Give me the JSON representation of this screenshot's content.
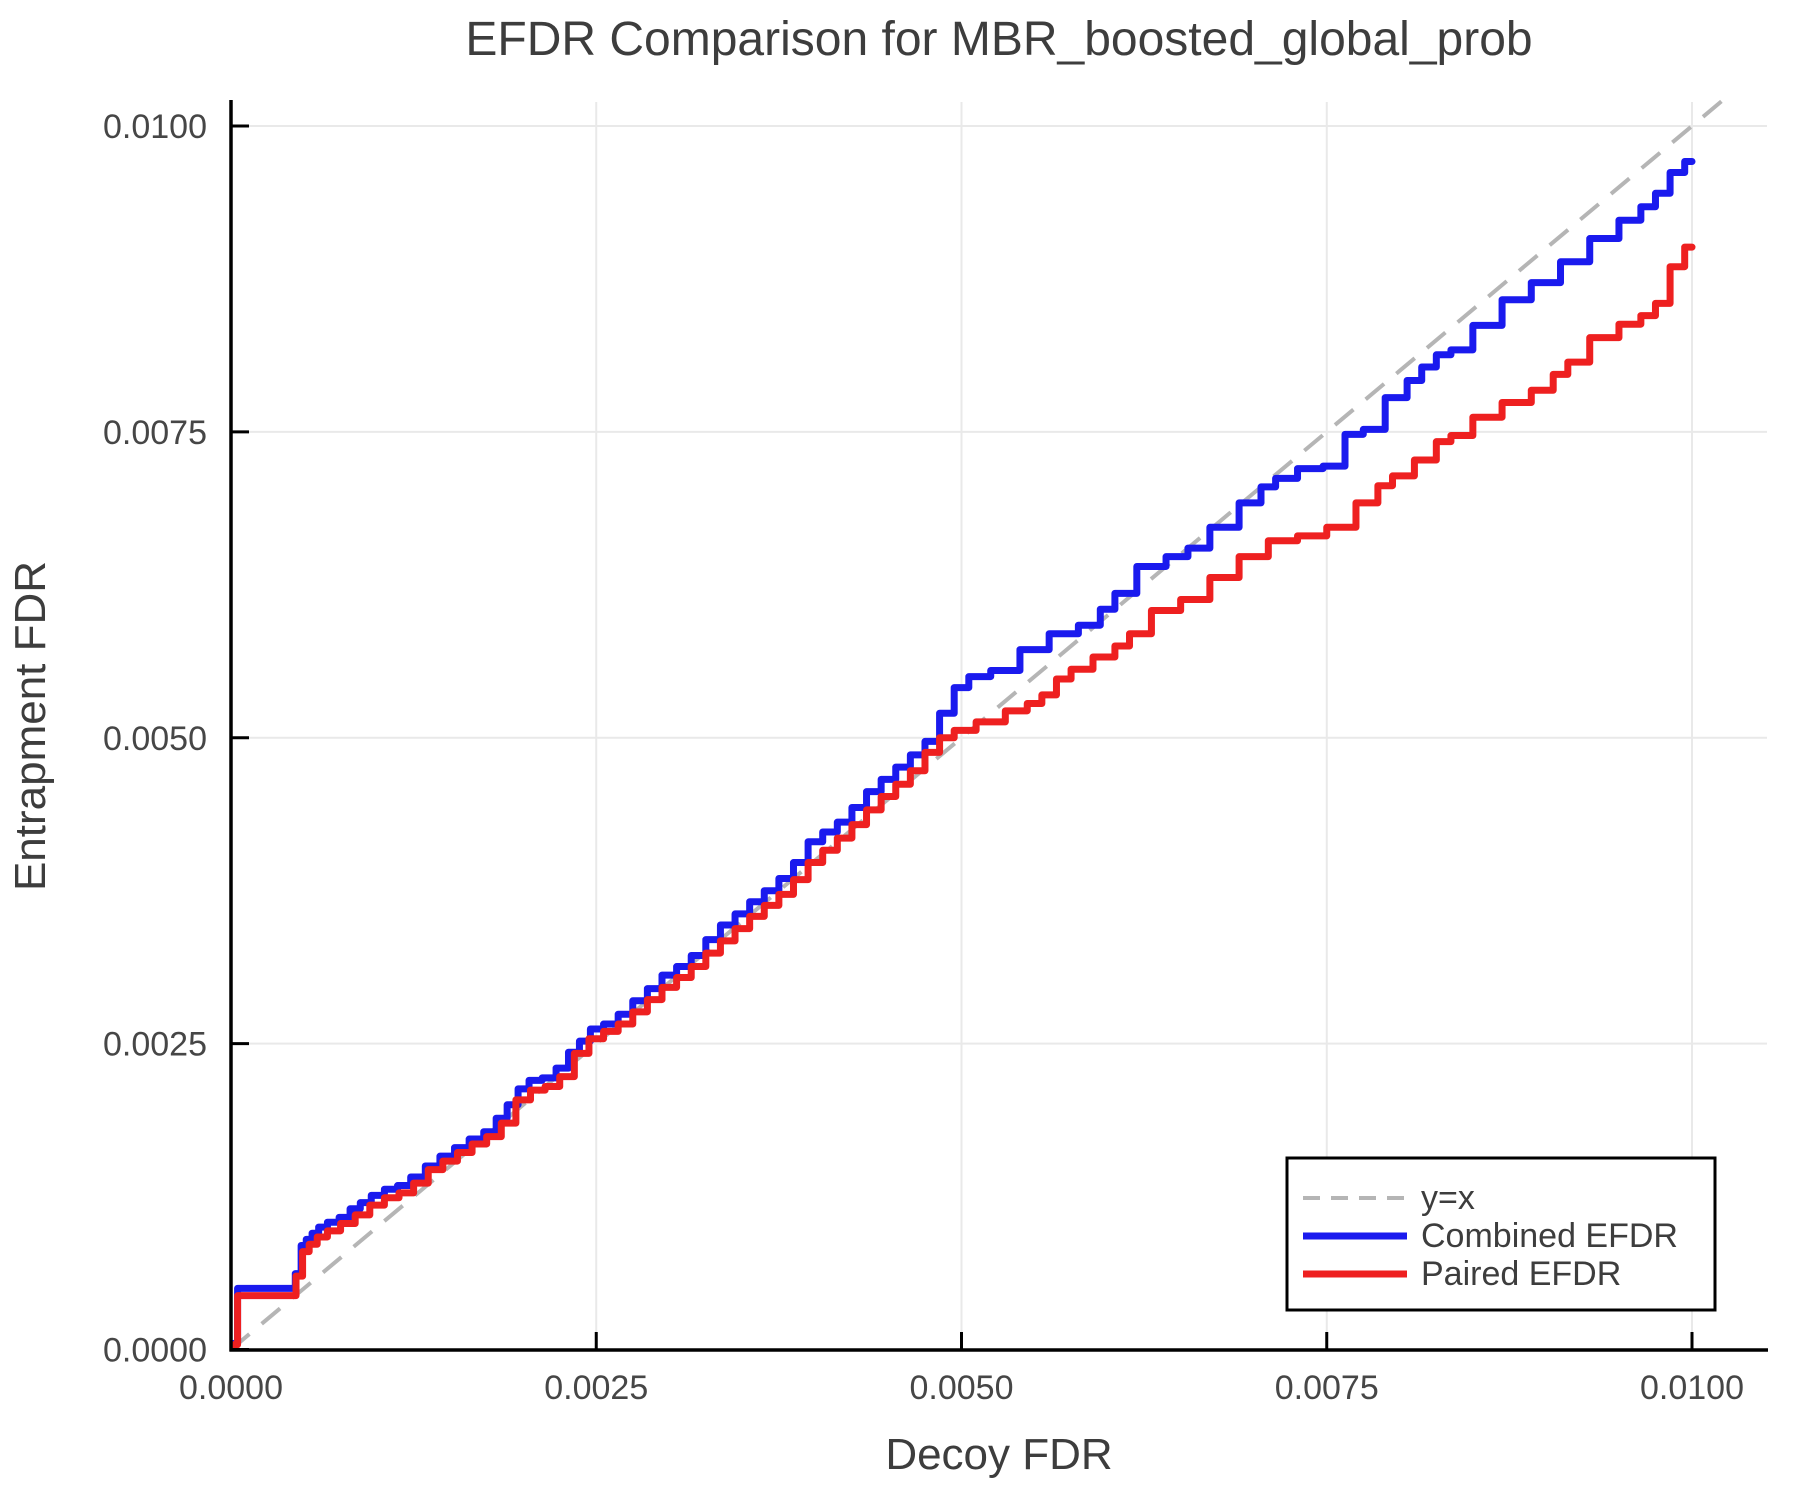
{
  "title": "EFDR Comparison for MBR_boosted_global_prob",
  "chart_data": {
    "type": "line",
    "title": "EFDR Comparison for MBR_boosted_global_prob",
    "xlabel": "Decoy FDR",
    "ylabel": "Entrapment FDR",
    "xlim": [
      0.0,
      0.0105
    ],
    "ylim": [
      0.0,
      0.0102
    ],
    "grid": true,
    "x_ticks": {
      "values": [
        0.0,
        0.0025,
        0.005,
        0.0075,
        0.01
      ],
      "labels": [
        "0.0000",
        "0.0025",
        "0.0050",
        "0.0075",
        "0.0100"
      ]
    },
    "y_ticks": {
      "values": [
        0.0,
        0.0025,
        0.005,
        0.0075,
        0.01
      ],
      "labels": [
        "0.0000",
        "0.0025",
        "0.0050",
        "0.0075",
        "0.0100"
      ]
    },
    "legend": {
      "position": "lower right",
      "entries": [
        {
          "label": "y=x",
          "color": "#b5b5b5",
          "style": "dashed"
        },
        {
          "label": "Combined EFDR",
          "color": "#1a1aee",
          "style": "solid"
        },
        {
          "label": "Paired EFDR",
          "color": "#ee2020",
          "style": "solid"
        }
      ]
    },
    "colors": {
      "grid": "#e9e9e9",
      "axis": "#000000",
      "text": "#3d3d3d",
      "tick_text": "#464646"
    },
    "series": [
      {
        "name": "y=x",
        "color": "#b5b5b5",
        "style": "dashed",
        "points": [
          [
            0.0,
            0.0
          ],
          [
            0.0105,
            0.0105
          ]
        ]
      },
      {
        "name": "Combined EFDR",
        "color": "#1a1aee",
        "style": "solid",
        "points": [
          [
            0.0,
            0.0
          ],
          [
            4e-05,
            5e-05
          ],
          [
            5e-05,
            0.0005
          ],
          [
            0.00042,
            0.0005
          ],
          [
            0.00046,
            0.00062
          ],
          [
            0.0005,
            0.00085
          ],
          [
            0.00053,
            0.0009
          ],
          [
            0.00058,
            0.00095
          ],
          [
            0.00062,
            0.001
          ],
          [
            0.0007,
            0.00104
          ],
          [
            0.00078,
            0.00108
          ],
          [
            0.00085,
            0.00115
          ],
          [
            0.00092,
            0.0012
          ],
          [
            0.001,
            0.00126
          ],
          [
            0.0011,
            0.00131
          ],
          [
            0.00118,
            0.00134
          ],
          [
            0.00128,
            0.00141
          ],
          [
            0.00138,
            0.0015
          ],
          [
            0.00148,
            0.00158
          ],
          [
            0.00158,
            0.00165
          ],
          [
            0.00168,
            0.00172
          ],
          [
            0.00178,
            0.00178
          ],
          [
            0.00185,
            0.00189
          ],
          [
            0.00193,
            0.002
          ],
          [
            0.002,
            0.00213
          ],
          [
            0.00208,
            0.0022
          ],
          [
            0.00218,
            0.00222
          ],
          [
            0.00227,
            0.0023
          ],
          [
            0.00235,
            0.00243
          ],
          [
            0.00242,
            0.00252
          ],
          [
            0.0025,
            0.00262
          ],
          [
            0.0026,
            0.00266
          ],
          [
            0.0027,
            0.00274
          ],
          [
            0.0028,
            0.00285
          ],
          [
            0.0029,
            0.00295
          ],
          [
            0.003,
            0.00306
          ],
          [
            0.0031,
            0.00313
          ],
          [
            0.0032,
            0.00322
          ],
          [
            0.0033,
            0.00335
          ],
          [
            0.0034,
            0.00347
          ],
          [
            0.0035,
            0.00356
          ],
          [
            0.0036,
            0.00366
          ],
          [
            0.0037,
            0.00375
          ],
          [
            0.0038,
            0.00385
          ],
          [
            0.0039,
            0.00398
          ],
          [
            0.004,
            0.00415
          ],
          [
            0.0041,
            0.00423
          ],
          [
            0.0042,
            0.00431
          ],
          [
            0.0043,
            0.00443
          ],
          [
            0.0044,
            0.00456
          ],
          [
            0.0045,
            0.00466
          ],
          [
            0.0046,
            0.00476
          ],
          [
            0.0047,
            0.00486
          ],
          [
            0.0048,
            0.00497
          ],
          [
            0.0049,
            0.0052
          ],
          [
            0.005,
            0.00541
          ],
          [
            0.0051,
            0.0055
          ],
          [
            0.0053,
            0.00555
          ],
          [
            0.0055,
            0.00572
          ],
          [
            0.0057,
            0.00585
          ],
          [
            0.0059,
            0.00592
          ],
          [
            0.006,
            0.00605
          ],
          [
            0.0061,
            0.00618
          ],
          [
            0.0063,
            0.0064
          ],
          [
            0.0065,
            0.00648
          ],
          [
            0.0066,
            0.00655
          ],
          [
            0.0068,
            0.00672
          ],
          [
            0.007,
            0.00692
          ],
          [
            0.0071,
            0.00705
          ],
          [
            0.0072,
            0.00712
          ],
          [
            0.0074,
            0.0072
          ],
          [
            0.00755,
            0.00722
          ],
          [
            0.0077,
            0.00748
          ],
          [
            0.0078,
            0.00752
          ],
          [
            0.008,
            0.00778
          ],
          [
            0.0081,
            0.00792
          ],
          [
            0.0082,
            0.00803
          ],
          [
            0.0083,
            0.00813
          ],
          [
            0.0084,
            0.00817
          ],
          [
            0.0086,
            0.00837
          ],
          [
            0.0088,
            0.00858
          ],
          [
            0.009,
            0.00872
          ],
          [
            0.0092,
            0.00889
          ],
          [
            0.0094,
            0.00908
          ],
          [
            0.0096,
            0.00923
          ],
          [
            0.0097,
            0.00934
          ],
          [
            0.0098,
            0.00945
          ],
          [
            0.0099,
            0.00962
          ],
          [
            0.01,
            0.00971
          ]
        ]
      },
      {
        "name": "Paired EFDR",
        "color": "#ee2020",
        "style": "solid",
        "points": [
          [
            0.0,
            0.0
          ],
          [
            4e-05,
            4e-05
          ],
          [
            5e-05,
            0.00044
          ],
          [
            0.00042,
            0.00044
          ],
          [
            0.00047,
            0.0006
          ],
          [
            0.00051,
            0.0008
          ],
          [
            0.00056,
            0.00086
          ],
          [
            0.00062,
            0.00092
          ],
          [
            0.0007,
            0.00097
          ],
          [
            0.0008,
            0.00103
          ],
          [
            0.0009,
            0.0011
          ],
          [
            0.001,
            0.00118
          ],
          [
            0.0011,
            0.00124
          ],
          [
            0.0012,
            0.00128
          ],
          [
            0.0013,
            0.00136
          ],
          [
            0.0014,
            0.00147
          ],
          [
            0.0015,
            0.00154
          ],
          [
            0.0016,
            0.00161
          ],
          [
            0.0017,
            0.00168
          ],
          [
            0.0018,
            0.00174
          ],
          [
            0.0019,
            0.00185
          ],
          [
            0.002,
            0.00204
          ],
          [
            0.0021,
            0.00212
          ],
          [
            0.0022,
            0.00215
          ],
          [
            0.0023,
            0.00223
          ],
          [
            0.0024,
            0.00242
          ],
          [
            0.0025,
            0.00254
          ],
          [
            0.0026,
            0.0026
          ],
          [
            0.0027,
            0.00266
          ],
          [
            0.0028,
            0.00276
          ],
          [
            0.0029,
            0.00286
          ],
          [
            0.003,
            0.00296
          ],
          [
            0.0031,
            0.00304
          ],
          [
            0.0032,
            0.00313
          ],
          [
            0.0033,
            0.00324
          ],
          [
            0.0034,
            0.00334
          ],
          [
            0.0035,
            0.00344
          ],
          [
            0.0036,
            0.00354
          ],
          [
            0.0037,
            0.00363
          ],
          [
            0.0038,
            0.00372
          ],
          [
            0.0039,
            0.00384
          ],
          [
            0.004,
            0.00398
          ],
          [
            0.0041,
            0.00408
          ],
          [
            0.0042,
            0.00418
          ],
          [
            0.0043,
            0.00429
          ],
          [
            0.0044,
            0.00441
          ],
          [
            0.0045,
            0.00452
          ],
          [
            0.0046,
            0.00462
          ],
          [
            0.0047,
            0.00473
          ],
          [
            0.0048,
            0.00488
          ],
          [
            0.0049,
            0.005
          ],
          [
            0.005,
            0.00506
          ],
          [
            0.0052,
            0.00513
          ],
          [
            0.0054,
            0.00522
          ],
          [
            0.0055,
            0.00528
          ],
          [
            0.0056,
            0.00535
          ],
          [
            0.0057,
            0.00548
          ],
          [
            0.0058,
            0.00556
          ],
          [
            0.006,
            0.00566
          ],
          [
            0.0061,
            0.00575
          ],
          [
            0.0062,
            0.00585
          ],
          [
            0.0064,
            0.00604
          ],
          [
            0.0066,
            0.00613
          ],
          [
            0.0068,
            0.00631
          ],
          [
            0.007,
            0.00648
          ],
          [
            0.0072,
            0.00661
          ],
          [
            0.0074,
            0.00665
          ],
          [
            0.0076,
            0.00672
          ],
          [
            0.0078,
            0.00692
          ],
          [
            0.0079,
            0.00706
          ],
          [
            0.008,
            0.00714
          ],
          [
            0.0082,
            0.00727
          ],
          [
            0.0083,
            0.00742
          ],
          [
            0.0084,
            0.00747
          ],
          [
            0.0086,
            0.00762
          ],
          [
            0.0088,
            0.00774
          ],
          [
            0.009,
            0.00784
          ],
          [
            0.0091,
            0.00797
          ],
          [
            0.0092,
            0.00807
          ],
          [
            0.0094,
            0.00827
          ],
          [
            0.0096,
            0.00838
          ],
          [
            0.0097,
            0.00845
          ],
          [
            0.0098,
            0.00855
          ],
          [
            0.0099,
            0.00885
          ],
          [
            0.01,
            0.00901
          ]
        ]
      }
    ]
  }
}
